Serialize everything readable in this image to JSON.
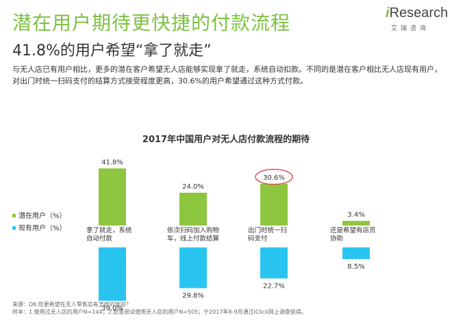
{
  "page": {
    "title": "潜在用户期待更快捷的付款流程",
    "subtitle": "41.8%的用户希望“拿了就走”",
    "body": "与无人店已有用户相比，更多的潜在客户希望无人店能够实现拿了就走，系统自动扣款。不同的是潜在客户相比无人店现有用户，对出门时统一扫码支付的结算方式接受程度更高，30.6%的用户希望通过这种方式付款。",
    "footer_source": "来源：D6.您更希望在无人零售店有怎样的体验？",
    "footer_sample": "样本：1.使用过无人店的用户N=144；2.愿意尝试使用无人店的用户N=505；于2017年8-9月通过iClick网上调查获得。"
  },
  "logo": {
    "mark": "i",
    "word": "Research",
    "sub": "艾瑞咨询"
  },
  "colors": {
    "title_green": "#7DC242",
    "potential": "#8DC63F",
    "existing": "#29C5F0",
    "highlight_circle": "#E0505A"
  },
  "chart_data": {
    "type": "bar",
    "title": "2017年中国用户对无人店付款流程的期待",
    "categories": [
      "拿了就走，系统自动付款",
      "依次扫码加入购物车，线上付款结算",
      "出门时统一扫码支付",
      "还是希望有店员协助"
    ],
    "category_lines": [
      [
        "拿了就走，系统",
        "自动付款"
      ],
      [
        "依次扫码加入购物",
        "车，线上付款结算"
      ],
      [
        "出门时统一扫",
        "码支付"
      ],
      [
        "还是希望有店员",
        "协助"
      ]
    ],
    "series": [
      {
        "name": "潜在用户（%）",
        "values": [
          41.8,
          24.0,
          30.6,
          3.4
        ],
        "labels": [
          "41.8%",
          "24.0%",
          "30.6%",
          "3.4%"
        ]
      },
      {
        "name": "现有用户（%）",
        "values": [
          39.0,
          29.8,
          22.7,
          8.5
        ],
        "labels": [
          "39.0%",
          "29.8%",
          "22.7%",
          "8.5%"
        ]
      }
    ],
    "layout": "diverging-vertical",
    "highlighted": {
      "series": 0,
      "category": 2
    },
    "legend_position": "left",
    "grid": false
  }
}
